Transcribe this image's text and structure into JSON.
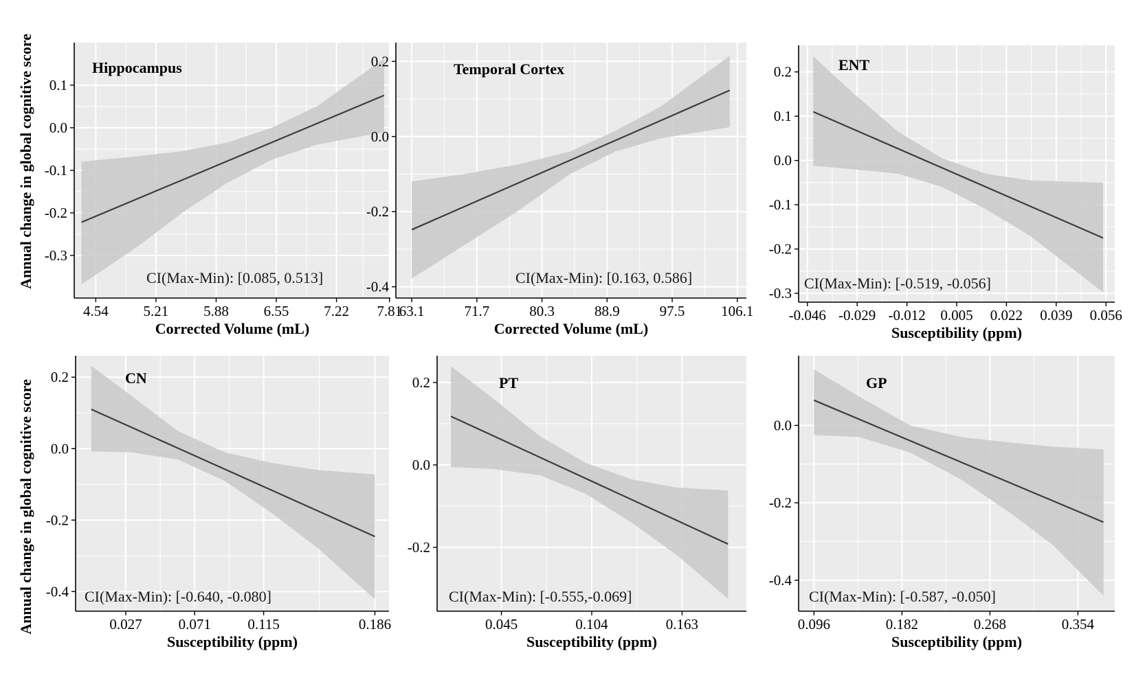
{
  "figure": {
    "ylabel": "Annual change in global cognitive score",
    "line_color": "#3d3d3d",
    "band_color": "#c9c9c9",
    "panel_bg": "#ebebeb",
    "grid_color": "#ffffff"
  },
  "chart_data": [
    {
      "type": "line",
      "title": "Hippocampus",
      "xlabel": "Corrected Volume (mL)",
      "ylabel": "Annual change in global cognitive score",
      "xticks": [
        "4.54",
        "5.21",
        "5.88",
        "6.55",
        "7.22",
        "7.81"
      ],
      "xtick_values": [
        4.54,
        5.21,
        5.88,
        6.55,
        7.22,
        7.81
      ],
      "xlim": [
        4.3,
        7.82
      ],
      "yticks": [
        "0.1",
        "0.0",
        "-0.1",
        "-0.2",
        "-0.3"
      ],
      "ytick_values": [
        0.1,
        0.0,
        -0.1,
        -0.2,
        -0.3
      ],
      "ylim": [
        -0.4,
        0.2
      ],
      "fit": {
        "x": [
          4.38,
          7.75
        ],
        "y": [
          -0.222,
          0.076
        ]
      },
      "band": {
        "x": [
          4.38,
          5.0,
          5.5,
          6.0,
          6.5,
          7.0,
          7.75
        ],
        "upper": [
          -0.08,
          -0.067,
          -0.055,
          -0.035,
          -0.0,
          0.05,
          0.162
        ],
        "lower": [
          -0.368,
          -0.28,
          -0.2,
          -0.13,
          -0.075,
          -0.04,
          -0.01
        ]
      },
      "annotation": "CI(Max-Min): [0.085, 0.513]",
      "grid": true
    },
    {
      "type": "line",
      "title": "Temporal Cortex",
      "xlabel": "Corrected Volume (mL)",
      "ylabel": "",
      "xticks": [
        "63.1",
        "71.7",
        "80.3",
        "88.9",
        "97.5",
        "106.1"
      ],
      "xtick_values": [
        63.1,
        71.7,
        80.3,
        88.9,
        97.5,
        106.1
      ],
      "xlim": [
        61,
        107.3
      ],
      "yticks": [
        "0.2",
        "0.0",
        "-0.2",
        "-0.4"
      ],
      "ytick_values": [
        0.2,
        0.0,
        -0.2,
        -0.4
      ],
      "ylim": [
        -0.43,
        0.25
      ],
      "fit": {
        "x": [
          63.1,
          105.1
        ],
        "y": [
          -0.248,
          0.123
        ]
      },
      "band": {
        "x": [
          63.1,
          70,
          77,
          84,
          90,
          96,
          105.1
        ],
        "upper": [
          -0.12,
          -0.1,
          -0.075,
          -0.04,
          0.015,
          0.08,
          0.215
        ],
        "lower": [
          -0.378,
          -0.29,
          -0.2,
          -0.1,
          -0.04,
          -0.005,
          0.025
        ]
      },
      "annotation": "CI(Max-Min): [0.163, 0.586]",
      "grid": true
    },
    {
      "type": "line",
      "title": "ENT",
      "xlabel": "Susceptibility (ppm)",
      "ylabel": "",
      "xticks": [
        "-0.046",
        "-0.029",
        "-0.012",
        "0.005",
        "0.022",
        "0.039",
        "0.056"
      ],
      "xtick_values": [
        -0.046,
        -0.029,
        -0.012,
        0.005,
        0.022,
        0.039,
        0.056
      ],
      "xlim": [
        -0.049,
        0.059
      ],
      "yticks": [
        "0.2",
        "0.1",
        "0.0",
        "-0.1",
        "-0.2",
        "-0.3"
      ],
      "ytick_values": [
        0.2,
        0.1,
        0.0,
        -0.1,
        -0.2,
        -0.3
      ],
      "ylim": [
        -0.32,
        0.26
      ],
      "fit": {
        "x": [
          -0.044,
          0.055
        ],
        "y": [
          0.11,
          -0.175
        ]
      },
      "band": {
        "x": [
          -0.044,
          -0.03,
          -0.015,
          0.0,
          0.015,
          0.03,
          0.055
        ],
        "upper": [
          0.235,
          0.15,
          0.065,
          0.005,
          -0.03,
          -0.045,
          -0.05
        ],
        "lower": [
          -0.012,
          -0.02,
          -0.03,
          -0.06,
          -0.11,
          -0.17,
          -0.298
        ]
      },
      "annotation": "CI(Max-Min): [-0.519, -0.056]",
      "grid": true
    },
    {
      "type": "line",
      "title": "CN",
      "xlabel": "Susceptibility (ppm)",
      "ylabel": "Annual change in global cognitive score",
      "xticks": [
        "0.027",
        "0.071",
        "0.115",
        "0.186"
      ],
      "xtick_values": [
        0.027,
        0.071,
        0.115,
        0.186
      ],
      "xlim": [
        -0.005,
        0.195
      ],
      "yticks": [
        "0.2",
        "0.0",
        "-0.2",
        "-0.4"
      ],
      "ytick_values": [
        0.2,
        0.0,
        -0.2,
        -0.4
      ],
      "ylim": [
        -0.455,
        0.26
      ],
      "fit": {
        "x": [
          0.005,
          0.186
        ],
        "y": [
          0.11,
          -0.246
        ]
      },
      "band": {
        "x": [
          0.005,
          0.03,
          0.06,
          0.09,
          0.12,
          0.15,
          0.186
        ],
        "upper": [
          0.232,
          0.15,
          0.05,
          -0.01,
          -0.04,
          -0.06,
          -0.072
        ],
        "lower": [
          -0.008,
          -0.01,
          -0.03,
          -0.09,
          -0.18,
          -0.28,
          -0.422
        ]
      },
      "annotation": "CI(Max-Min): [-0.640, -0.080]",
      "grid": true
    },
    {
      "type": "line",
      "title": "PT",
      "xlabel": "Susceptibility (ppm)",
      "ylabel": "",
      "xticks": [
        "0.045",
        "0.104",
        "0.163"
      ],
      "xtick_values": [
        0.045,
        0.104,
        0.163
      ],
      "xlim": [
        0.003,
        0.205
      ],
      "yticks": [
        "0.2",
        "0.0",
        "-0.2"
      ],
      "ytick_values": [
        0.2,
        0.0,
        -0.2
      ],
      "ylim": [
        -0.355,
        0.265
      ],
      "fit": {
        "x": [
          0.012,
          0.193
        ],
        "y": [
          0.118,
          -0.192
        ]
      },
      "band": {
        "x": [
          0.012,
          0.04,
          0.07,
          0.1,
          0.13,
          0.16,
          0.193
        ],
        "upper": [
          0.24,
          0.16,
          0.07,
          0.005,
          -0.035,
          -0.055,
          -0.062
        ],
        "lower": [
          -0.005,
          -0.01,
          -0.025,
          -0.07,
          -0.14,
          -0.22,
          -0.325
        ]
      },
      "annotation": "CI(Max-Min): [-0.555,-0.069]",
      "grid": true
    },
    {
      "type": "line",
      "title": "GP",
      "xlabel": "Susceptibility (ppm)",
      "ylabel": "",
      "xticks": [
        "0.096",
        "0.182",
        "0.268",
        "0.354"
      ],
      "xtick_values": [
        0.096,
        0.182,
        0.268,
        0.354
      ],
      "xlim": [
        0.081,
        0.39
      ],
      "yticks": [
        "0.0",
        "-0.2",
        "-0.4"
      ],
      "ytick_values": [
        0.0,
        -0.2,
        -0.4
      ],
      "ylim": [
        -0.48,
        0.18
      ],
      "fit": {
        "x": [
          0.096,
          0.379
        ],
        "y": [
          0.065,
          -0.25
        ]
      },
      "band": {
        "x": [
          0.096,
          0.14,
          0.19,
          0.24,
          0.29,
          0.33,
          0.379
        ],
        "upper": [
          0.145,
          0.075,
          0.0,
          -0.03,
          -0.045,
          -0.055,
          -0.062
        ],
        "lower": [
          -0.025,
          -0.03,
          -0.07,
          -0.14,
          -0.23,
          -0.31,
          -0.44
        ]
      },
      "annotation": "CI(Max-Min): [-0.587, -0.050]",
      "grid": true
    }
  ]
}
